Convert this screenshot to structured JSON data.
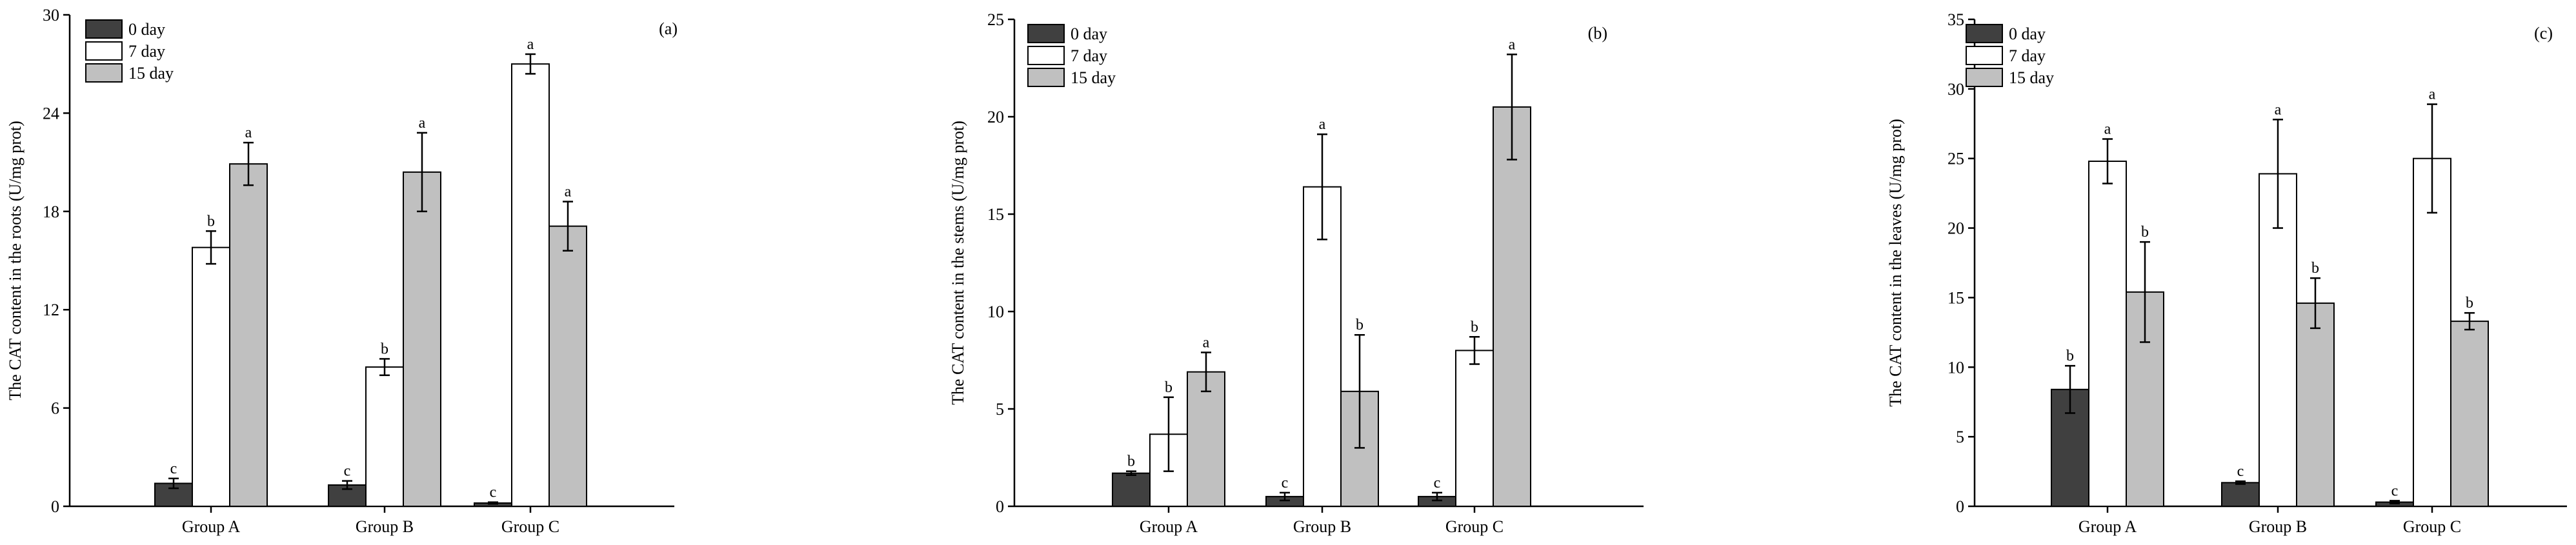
{
  "colors": {
    "day0": "#404040",
    "day7": "#ffffff",
    "day15": "#c0c0c0",
    "stroke": "#000000"
  },
  "chart_data": [
    {
      "type": "bar",
      "title": "(a)",
      "xlabel": "",
      "ylabel": "The CAT content in the roots (U/mg prot)",
      "categories": [
        "Group A",
        "Group B",
        "Group C"
      ],
      "ylim": [
        0,
        30
      ],
      "yticks": [
        0,
        6,
        12,
        18,
        24,
        30
      ],
      "legend_position": "top-left",
      "series": [
        {
          "name": "0 day",
          "color": "#404040",
          "values": [
            1.4,
            1.3,
            0.2
          ],
          "errors": [
            0.3,
            0.25,
            0.05
          ],
          "labels": [
            "c",
            "c",
            "c"
          ]
        },
        {
          "name": "7 day",
          "color": "#ffffff",
          "values": [
            15.8,
            8.5,
            27.0
          ],
          "errors": [
            1.0,
            0.5,
            0.6
          ],
          "labels": [
            "b",
            "b",
            "a"
          ]
        },
        {
          "name": "15 day",
          "color": "#c0c0c0",
          "values": [
            20.9,
            20.4,
            17.1
          ],
          "errors": [
            1.3,
            2.4,
            1.5
          ],
          "labels": [
            "a",
            "a",
            "a"
          ]
        }
      ]
    },
    {
      "type": "bar",
      "title": "(b)",
      "xlabel": "",
      "ylabel": "The CAT content in the stems (U/mg prot)",
      "categories": [
        "Group A",
        "Group B",
        "Group C"
      ],
      "ylim": [
        0,
        25
      ],
      "yticks": [
        0,
        5,
        10,
        15,
        20,
        25
      ],
      "legend_position": "top-left",
      "series": [
        {
          "name": "0 day",
          "color": "#404040",
          "values": [
            1.7,
            0.5,
            0.5
          ],
          "errors": [
            0.1,
            0.2,
            0.2
          ],
          "labels": [
            "b",
            "c",
            "c"
          ]
        },
        {
          "name": "7 day",
          "color": "#ffffff",
          "values": [
            3.7,
            16.4,
            8.0
          ],
          "errors": [
            1.9,
            2.7,
            0.7
          ],
          "labels": [
            "b",
            "a",
            "b"
          ]
        },
        {
          "name": "15 day",
          "color": "#c0c0c0",
          "values": [
            6.9,
            5.9,
            20.5
          ],
          "errors": [
            1.0,
            2.9,
            2.7
          ],
          "labels": [
            "a",
            "b",
            "a"
          ]
        }
      ]
    },
    {
      "type": "bar",
      "title": "(c)",
      "xlabel": "",
      "ylabel": "The CAT content in the leaves (U/mg prot)",
      "categories": [
        "Group A",
        "Group B",
        "Group C"
      ],
      "ylim": [
        0,
        35
      ],
      "yticks": [
        0,
        5,
        10,
        15,
        20,
        25,
        30,
        35
      ],
      "legend_position": "top-left",
      "series": [
        {
          "name": "0 day",
          "color": "#404040",
          "values": [
            8.4,
            1.7,
            0.3
          ],
          "errors": [
            1.7,
            0.1,
            0.1
          ],
          "labels": [
            "b",
            "c",
            "c"
          ]
        },
        {
          "name": "7 day",
          "color": "#ffffff",
          "values": [
            24.8,
            23.9,
            25.0
          ],
          "errors": [
            1.6,
            3.9,
            3.9
          ],
          "labels": [
            "a",
            "a",
            "a"
          ]
        },
        {
          "name": "15 day",
          "color": "#c0c0c0",
          "values": [
            15.4,
            14.6,
            13.3
          ],
          "errors": [
            3.6,
            1.8,
            0.6
          ],
          "labels": [
            "b",
            "b",
            "b"
          ]
        }
      ]
    }
  ]
}
